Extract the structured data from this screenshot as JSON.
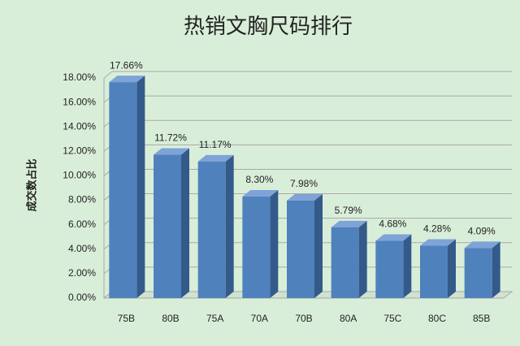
{
  "chart_data": {
    "type": "bar3d",
    "title": "热销文胸尺码排行",
    "y_label": "成交数占比",
    "categories": [
      "75B",
      "80B",
      "75A",
      "70A",
      "70B",
      "80A",
      "75C",
      "80C",
      "85B"
    ],
    "values": [
      17.66,
      11.72,
      11.17,
      8.3,
      7.98,
      5.79,
      4.68,
      4.28,
      4.09
    ],
    "value_labels": [
      "17.66%",
      "11.72%",
      "11.17%",
      "8.30%",
      "7.98%",
      "5.79%",
      "4.68%",
      "4.28%",
      "4.09%"
    ],
    "color": "#4f81bd",
    "ylim": [
      0,
      18
    ],
    "yticks": [
      {
        "value": 0,
        "label": "0.00%"
      },
      {
        "value": 2,
        "label": "2.00%"
      },
      {
        "value": 4,
        "label": "4.00%"
      },
      {
        "value": 6,
        "label": "6.00%"
      },
      {
        "value": 8,
        "label": "8.00%"
      },
      {
        "value": 10,
        "label": "10.00%"
      },
      {
        "value": 12,
        "label": "12.00%"
      },
      {
        "value": 14,
        "label": "14.00%"
      },
      {
        "value": 16,
        "label": "16.00%"
      },
      {
        "value": 18,
        "label": "18.00%"
      }
    ],
    "grid": true
  }
}
